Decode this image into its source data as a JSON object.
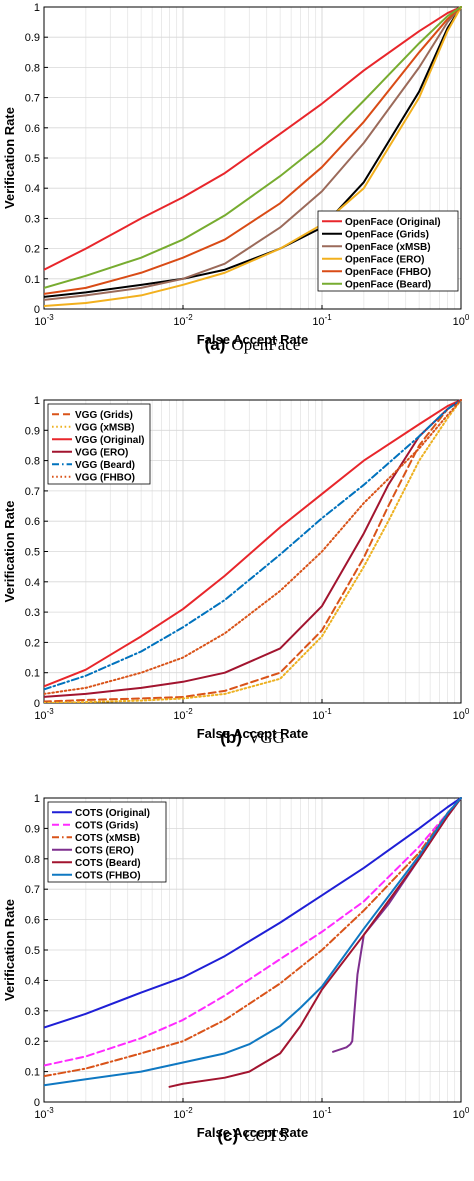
{
  "chart_data": [
    {
      "type": "line",
      "caption_letter": "(a)",
      "caption_text": "OpenFace",
      "xlabel": "False Accept Rate",
      "ylabel": "Verification Rate",
      "xscale": "log",
      "xlim": [
        0.001,
        1
      ],
      "ylim": [
        0,
        1
      ],
      "grid": true,
      "legend_position": "bottom-right",
      "x_ticks": [
        "10^-3",
        "10^-2",
        "10^-1",
        "10^0"
      ],
      "y_ticks": [
        "0",
        "0.1",
        "0.2",
        "0.3",
        "0.4",
        "0.5",
        "0.6",
        "0.7",
        "0.8",
        "0.9",
        "1"
      ],
      "series": [
        {
          "name": "OpenFace (Original)",
          "color": "#e8262b",
          "dash": "solid",
          "x": [
            0.001,
            0.002,
            0.005,
            0.01,
            0.02,
            0.05,
            0.1,
            0.2,
            0.5,
            0.8,
            1
          ],
          "y": [
            0.13,
            0.2,
            0.3,
            0.37,
            0.45,
            0.58,
            0.68,
            0.79,
            0.92,
            0.98,
            1
          ]
        },
        {
          "name": "OpenFace (Grids)",
          "color": "#000000",
          "dash": "solid",
          "x": [
            0.001,
            0.002,
            0.005,
            0.01,
            0.02,
            0.05,
            0.1,
            0.2,
            0.5,
            0.8,
            1
          ],
          "y": [
            0.04,
            0.055,
            0.08,
            0.1,
            0.13,
            0.2,
            0.27,
            0.42,
            0.72,
            0.93,
            1
          ]
        },
        {
          "name": "OpenFace (xMSB)",
          "color": "#9b6a5a",
          "dash": "solid",
          "x": [
            0.001,
            0.002,
            0.005,
            0.01,
            0.02,
            0.05,
            0.1,
            0.2,
            0.5,
            0.8,
            1
          ],
          "y": [
            0.03,
            0.045,
            0.07,
            0.1,
            0.15,
            0.27,
            0.39,
            0.55,
            0.8,
            0.95,
            1
          ]
        },
        {
          "name": "OpenFace (ERO)",
          "color": "#f2b01e",
          "dash": "solid",
          "x": [
            0.001,
            0.002,
            0.005,
            0.01,
            0.02,
            0.05,
            0.1,
            0.2,
            0.5,
            0.8,
            1
          ],
          "y": [
            0.01,
            0.02,
            0.045,
            0.08,
            0.12,
            0.2,
            0.28,
            0.4,
            0.7,
            0.92,
            1
          ]
        },
        {
          "name": "OpenFace (FHBO)",
          "color": "#d94b16",
          "dash": "solid",
          "x": [
            0.001,
            0.002,
            0.005,
            0.01,
            0.02,
            0.05,
            0.1,
            0.2,
            0.5,
            0.8,
            1
          ],
          "y": [
            0.05,
            0.07,
            0.12,
            0.17,
            0.23,
            0.35,
            0.47,
            0.62,
            0.85,
            0.96,
            1
          ]
        },
        {
          "name": "OpenFace (Beard)",
          "color": "#77ac30",
          "dash": "solid",
          "x": [
            0.001,
            0.002,
            0.005,
            0.01,
            0.02,
            0.05,
            0.1,
            0.2,
            0.5,
            0.8,
            1
          ],
          "y": [
            0.07,
            0.11,
            0.17,
            0.23,
            0.31,
            0.44,
            0.55,
            0.69,
            0.88,
            0.97,
            1
          ]
        }
      ]
    },
    {
      "type": "line",
      "caption_letter": "(b)",
      "caption_text": "VGG",
      "xlabel": "False Accept Rate",
      "ylabel": "Verification Rate",
      "xscale": "log",
      "xlim": [
        0.001,
        1
      ],
      "ylim": [
        0,
        1
      ],
      "grid": true,
      "legend_position": "top-left",
      "x_ticks": [
        "10^-3",
        "10^-2",
        "10^-1",
        "10^0"
      ],
      "y_ticks": [
        "0",
        "0.1",
        "0.2",
        "0.3",
        "0.4",
        "0.5",
        "0.6",
        "0.7",
        "0.8",
        "0.9",
        "1"
      ],
      "series": [
        {
          "name": "VGG (Grids)",
          "color": "#d95319",
          "dash": "dashed",
          "x": [
            0.001,
            0.002,
            0.005,
            0.01,
            0.02,
            0.05,
            0.1,
            0.2,
            0.3,
            0.5,
            0.8,
            1
          ],
          "y": [
            0.005,
            0.01,
            0.015,
            0.02,
            0.04,
            0.1,
            0.24,
            0.48,
            0.65,
            0.85,
            0.97,
            1
          ]
        },
        {
          "name": "VGG (xMSB)",
          "color": "#edb120",
          "dash": "dotted",
          "x": [
            0.001,
            0.002,
            0.005,
            0.01,
            0.02,
            0.05,
            0.1,
            0.2,
            0.3,
            0.5,
            0.8,
            1
          ],
          "y": [
            0,
            0.003,
            0.008,
            0.015,
            0.03,
            0.08,
            0.22,
            0.45,
            0.6,
            0.8,
            0.94,
            1
          ]
        },
        {
          "name": "VGG (Original)",
          "color": "#e8262b",
          "dash": "solid",
          "x": [
            0.001,
            0.002,
            0.005,
            0.01,
            0.02,
            0.05,
            0.1,
            0.2,
            0.5,
            0.8,
            1
          ],
          "y": [
            0.055,
            0.11,
            0.22,
            0.31,
            0.42,
            0.58,
            0.69,
            0.8,
            0.92,
            0.98,
            1
          ]
        },
        {
          "name": "VGG (ERO)",
          "color": "#a2142f",
          "dash": "solid",
          "x": [
            0.001,
            0.002,
            0.005,
            0.01,
            0.02,
            0.05,
            0.1,
            0.2,
            0.3,
            0.5,
            0.8,
            1
          ],
          "y": [
            0.02,
            0.03,
            0.05,
            0.07,
            0.1,
            0.18,
            0.32,
            0.56,
            0.72,
            0.88,
            0.97,
            1
          ]
        },
        {
          "name": "VGG (Beard)",
          "color": "#0072bd",
          "dash": "dashdot",
          "x": [
            0.001,
            0.002,
            0.005,
            0.01,
            0.02,
            0.05,
            0.1,
            0.2,
            0.5,
            0.8,
            1
          ],
          "y": [
            0.045,
            0.09,
            0.17,
            0.25,
            0.34,
            0.49,
            0.61,
            0.72,
            0.88,
            0.97,
            1
          ]
        },
        {
          "name": "VGG (FHBO)",
          "color": "#d95319",
          "dash": "dotted",
          "x": [
            0.001,
            0.002,
            0.005,
            0.01,
            0.02,
            0.05,
            0.1,
            0.2,
            0.5,
            0.8,
            1
          ],
          "y": [
            0.03,
            0.05,
            0.1,
            0.15,
            0.23,
            0.37,
            0.5,
            0.66,
            0.84,
            0.95,
            1
          ]
        }
      ]
    },
    {
      "type": "line",
      "caption_letter": "(c)",
      "caption_text": "COTS",
      "xlabel": "False Accept Rate",
      "ylabel": "Verification Rate",
      "xscale": "log",
      "xlim": [
        0.001,
        1
      ],
      "ylim": [
        0,
        1
      ],
      "grid": true,
      "legend_position": "top-left",
      "x_ticks": [
        "10^-3",
        "10^-2",
        "10^-1",
        "10^0"
      ],
      "y_ticks": [
        "0",
        "0.1",
        "0.2",
        "0.3",
        "0.4",
        "0.5",
        "0.6",
        "0.7",
        "0.8",
        "0.9",
        "1"
      ],
      "series": [
        {
          "name": "COTS (Original)",
          "color": "#1f1fd6",
          "dash": "solid",
          "x": [
            0.001,
            0.002,
            0.005,
            0.01,
            0.02,
            0.05,
            0.1,
            0.2,
            0.5,
            0.8,
            1
          ],
          "y": [
            0.245,
            0.29,
            0.36,
            0.41,
            0.48,
            0.59,
            0.68,
            0.77,
            0.9,
            0.97,
            1
          ]
        },
        {
          "name": "COTS (Grids)",
          "color": "#ff2bff",
          "dash": "dashed",
          "x": [
            0.001,
            0.002,
            0.005,
            0.01,
            0.02,
            0.05,
            0.1,
            0.2,
            0.5,
            0.8,
            1
          ],
          "y": [
            0.12,
            0.15,
            0.21,
            0.27,
            0.35,
            0.47,
            0.56,
            0.66,
            0.84,
            0.95,
            1
          ]
        },
        {
          "name": "COTS (xMSB)",
          "color": "#d95319",
          "dash": "dashdot",
          "x": [
            0.001,
            0.002,
            0.005,
            0.01,
            0.02,
            0.05,
            0.1,
            0.2,
            0.5,
            0.8,
            1
          ],
          "y": [
            0.085,
            0.11,
            0.16,
            0.2,
            0.27,
            0.39,
            0.5,
            0.63,
            0.82,
            0.95,
            1
          ]
        },
        {
          "name": "COTS (ERO)",
          "color": "#7e2f8e",
          "dash": "solid",
          "x": [
            0.12,
            0.15,
            0.16,
            0.165,
            0.17,
            0.18,
            0.2,
            0.3,
            0.5,
            0.8,
            1
          ],
          "y": [
            0.165,
            0.18,
            0.19,
            0.2,
            0.28,
            0.42,
            0.55,
            0.65,
            0.8,
            0.94,
            1
          ]
        },
        {
          "name": "COTS (Beard)",
          "color": "#a2142f",
          "dash": "solid",
          "x": [
            0.008,
            0.01,
            0.02,
            0.03,
            0.05,
            0.07,
            0.1,
            0.2,
            0.5,
            0.8,
            1
          ],
          "y": [
            0.05,
            0.06,
            0.08,
            0.1,
            0.16,
            0.25,
            0.37,
            0.55,
            0.8,
            0.94,
            1
          ]
        },
        {
          "name": "COTS (FHBO)",
          "color": "#0f78c2",
          "dash": "solid",
          "x": [
            0.001,
            0.002,
            0.005,
            0.01,
            0.02,
            0.03,
            0.05,
            0.07,
            0.1,
            0.2,
            0.5,
            0.8,
            1
          ],
          "y": [
            0.055,
            0.075,
            0.1,
            0.13,
            0.16,
            0.19,
            0.25,
            0.31,
            0.38,
            0.57,
            0.81,
            0.95,
            1
          ]
        }
      ]
    }
  ]
}
